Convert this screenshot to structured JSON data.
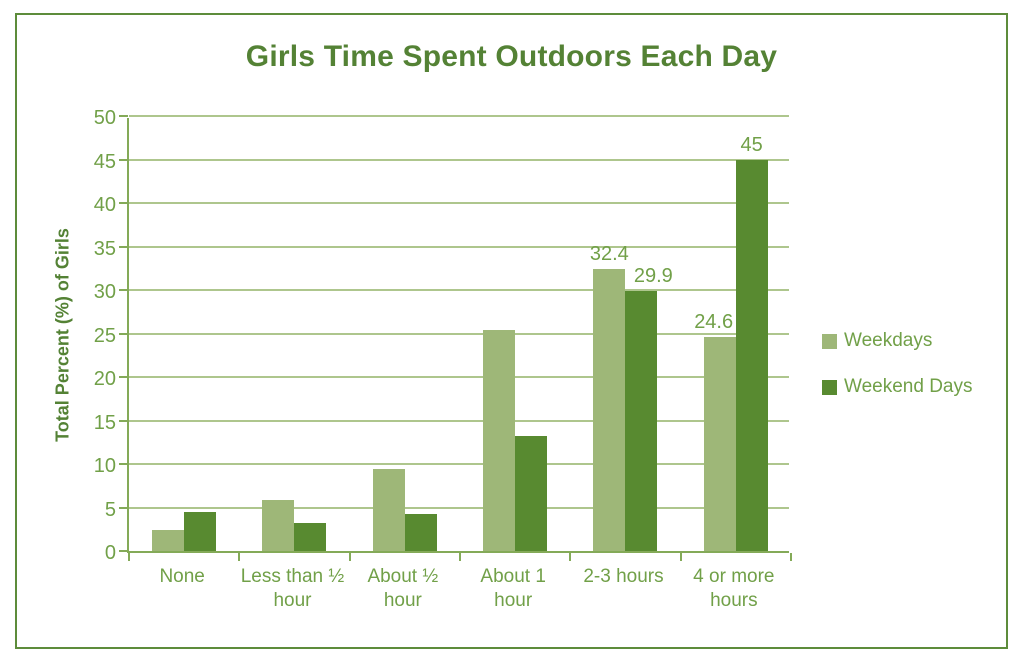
{
  "window": {
    "background_color": "#ffffff",
    "border_color": "#5d8c3b"
  },
  "colors": {
    "title_text": "#548235",
    "axis_text": "#71a048",
    "gridline": "#aec68d",
    "axis_line": "#84aa58",
    "weekdays_bar": "#9eb778",
    "weekend_bar": "#588a30"
  },
  "chart_data": {
    "type": "bar",
    "title": "Girls Time Spent Outdoors Each Day",
    "xlabel": "",
    "ylabel": "Total Percent (%) of Girls",
    "ylim": [
      0,
      50
    ],
    "ytick_step": 5,
    "yticks": [
      0,
      5,
      10,
      15,
      20,
      25,
      30,
      35,
      40,
      45,
      50
    ],
    "grid": "horizontal",
    "legend_position": "right",
    "categories": [
      "None",
      "Less than ½ hour",
      "About ½ hour",
      "About 1 hour",
      "2-3 hours",
      "4 or more hours"
    ],
    "series": [
      {
        "name": "Weekdays",
        "color": "#9eb778",
        "values": [
          2.4,
          5.9,
          9.4,
          25.4,
          32.4,
          24.6
        ],
        "data_labels": [
          null,
          null,
          null,
          null,
          "32.4",
          "24.6"
        ]
      },
      {
        "name": "Weekend Days",
        "color": "#588a30",
        "values": [
          4.5,
          3.2,
          4.2,
          13.2,
          29.9,
          45
        ],
        "data_labels": [
          null,
          null,
          null,
          null,
          "29.9",
          "45"
        ]
      }
    ]
  }
}
